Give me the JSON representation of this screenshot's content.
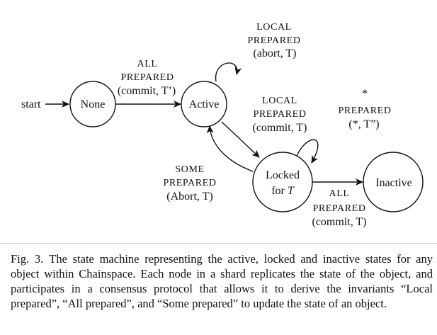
{
  "diagram": {
    "start_label": "start",
    "nodes": {
      "none": "None",
      "active": "Active",
      "locked_line1": "Locked",
      "locked_line2_prefix": "for ",
      "locked_line2_var": "T",
      "inactive": "Inactive"
    },
    "edges": {
      "none_to_active": {
        "line1": "All",
        "line2": "Prepared",
        "line3": "(commit, T’)"
      },
      "active_self": {
        "line1": "Local",
        "line2": "Prepared",
        "line3": "(abort, T)"
      },
      "active_to_locked": {
        "line1": "Local",
        "line2": "Prepared",
        "line3": "(commit, T)"
      },
      "locked_self": {
        "line1": "*",
        "line2": "Prepared",
        "line3": "(*, T”)"
      },
      "locked_to_active": {
        "line1": "Some",
        "line2": "Prepared",
        "line3": "(Abort, T)"
      },
      "locked_to_inactive": {
        "line1": "All",
        "line2": "Prepared",
        "line3": "(commit, T)"
      }
    }
  },
  "caption": {
    "label": "Fig. 3.",
    "text": "The state machine representing the active, locked and inactive states for any object within Chainspace. Each node in a shard replicates the state of the object, and participates in a consensus protocol that allows it to derive the invariants “Local prepared”, “All prepared”, and “Some prepared” to update the state of an object."
  }
}
